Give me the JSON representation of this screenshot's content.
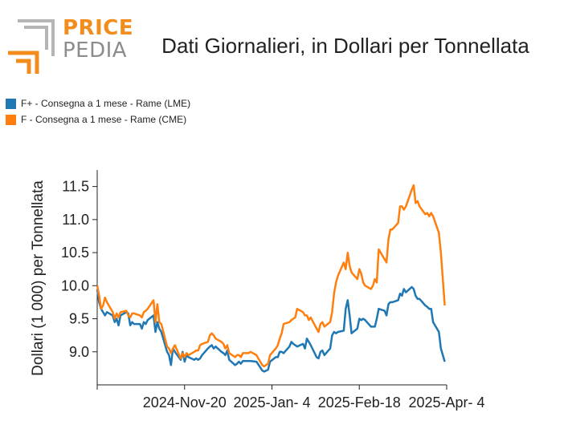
{
  "logo": {
    "word1": "PRICE",
    "word2": "PEDIA"
  },
  "chart_data": {
    "type": "line",
    "title": "Dati Giornalieri, in Dollari per Tonnellata",
    "ylabel": "Dollari (1 000) per Tonnellata",
    "xlabel": "",
    "ylim": [
      8.5,
      11.75
    ],
    "yticks": [
      9.0,
      9.5,
      10.0,
      10.5,
      11.0,
      11.5
    ],
    "xlim": [
      "2024-10-06",
      "2025-04-04"
    ],
    "xticks": [
      {
        "date": "2024-10-06",
        "label": ""
      },
      {
        "date": "2024-11-20",
        "label": "2024-Nov-20"
      },
      {
        "date": "2025-01-04",
        "label": "2025-Jan- 4"
      },
      {
        "date": "2025-02-18",
        "label": "2025-Feb-18"
      },
      {
        "date": "2025-04-04",
        "label": "2025-Apr- 4"
      }
    ],
    "grid": false,
    "legend_position": "top-left",
    "series": [
      {
        "name": "F+ - Consegna a 1 mese - Rame (LME)",
        "color": "#1f77b4",
        "points": [
          [
            "2024-10-06",
            9.95
          ],
          [
            "2024-10-07",
            9.75
          ],
          [
            "2024-10-08",
            9.65
          ],
          [
            "2024-10-09",
            9.6
          ],
          [
            "2024-10-10",
            9.55
          ],
          [
            "2024-10-11",
            9.6
          ],
          [
            "2024-10-14",
            9.55
          ],
          [
            "2024-10-15",
            9.45
          ],
          [
            "2024-10-16",
            9.5
          ],
          [
            "2024-10-17",
            9.4
          ],
          [
            "2024-10-18",
            9.55
          ],
          [
            "2024-10-21",
            9.6
          ],
          [
            "2024-10-22",
            9.58
          ],
          [
            "2024-10-23",
            9.4
          ],
          [
            "2024-10-24",
            9.45
          ],
          [
            "2024-10-25",
            9.42
          ],
          [
            "2024-10-28",
            9.42
          ],
          [
            "2024-10-29",
            9.35
          ],
          [
            "2024-10-30",
            9.45
          ],
          [
            "2024-10-31",
            9.42
          ],
          [
            "2024-11-01",
            9.48
          ],
          [
            "2024-11-04",
            9.55
          ],
          [
            "2024-11-05",
            9.3
          ],
          [
            "2024-11-06",
            9.45
          ],
          [
            "2024-11-07",
            9.35
          ],
          [
            "2024-11-08",
            9.3
          ],
          [
            "2024-11-11",
            9.0
          ],
          [
            "2024-11-12",
            8.95
          ],
          [
            "2024-11-13",
            8.8
          ],
          [
            "2024-11-14",
            9.05
          ],
          [
            "2024-11-15",
            9.0
          ],
          [
            "2024-11-18",
            8.88
          ],
          [
            "2024-11-19",
            9.0
          ],
          [
            "2024-11-20",
            8.85
          ],
          [
            "2024-11-21",
            8.95
          ],
          [
            "2024-11-22",
            8.92
          ],
          [
            "2024-11-25",
            8.88
          ],
          [
            "2024-11-26",
            8.9
          ],
          [
            "2024-11-27",
            8.88
          ],
          [
            "2024-11-28",
            8.9
          ],
          [
            "2024-11-29",
            8.95
          ],
          [
            "2024-12-02",
            9.05
          ],
          [
            "2024-12-03",
            9.08
          ],
          [
            "2024-12-04",
            9.1
          ],
          [
            "2024-12-05",
            9.05
          ],
          [
            "2024-12-06",
            9.08
          ],
          [
            "2024-12-09",
            9.0
          ],
          [
            "2024-12-10",
            8.98
          ],
          [
            "2024-12-11",
            8.95
          ],
          [
            "2024-12-12",
            9.02
          ],
          [
            "2024-12-13",
            8.88
          ],
          [
            "2024-12-16",
            8.8
          ],
          [
            "2024-12-17",
            8.82
          ],
          [
            "2024-12-18",
            8.85
          ],
          [
            "2024-12-19",
            8.82
          ],
          [
            "2024-12-20",
            8.86
          ],
          [
            "2024-12-23",
            8.86
          ],
          [
            "2024-12-24",
            8.86
          ],
          [
            "2024-12-27",
            8.85
          ],
          [
            "2024-12-30",
            8.72
          ],
          [
            "2024-12-31",
            8.7
          ],
          [
            "2025-01-02",
            8.73
          ],
          [
            "2025-01-03",
            8.85
          ],
          [
            "2025-01-06",
            8.92
          ],
          [
            "2025-01-07",
            8.92
          ],
          [
            "2025-01-08",
            9.0
          ],
          [
            "2025-01-09",
            9.0
          ],
          [
            "2025-01-10",
            8.98
          ],
          [
            "2025-01-13",
            9.08
          ],
          [
            "2025-01-14",
            9.15
          ],
          [
            "2025-01-15",
            9.12
          ],
          [
            "2025-01-16",
            9.1
          ],
          [
            "2025-01-17",
            9.08
          ],
          [
            "2025-01-20",
            9.12
          ],
          [
            "2025-01-21",
            9.05
          ],
          [
            "2025-01-22",
            9.2
          ],
          [
            "2025-01-23",
            9.15
          ],
          [
            "2025-01-24",
            9.1
          ],
          [
            "2025-01-27",
            8.92
          ],
          [
            "2025-01-28",
            8.9
          ],
          [
            "2025-01-29",
            9.0
          ],
          [
            "2025-01-30",
            9.02
          ],
          [
            "2025-01-31",
            8.95
          ],
          [
            "2025-02-03",
            9.05
          ],
          [
            "2025-02-04",
            9.25
          ],
          [
            "2025-02-05",
            9.3
          ],
          [
            "2025-02-06",
            9.28
          ],
          [
            "2025-02-07",
            9.3
          ],
          [
            "2025-02-10",
            9.32
          ],
          [
            "2025-02-11",
            9.65
          ],
          [
            "2025-02-12",
            9.78
          ],
          [
            "2025-02-13",
            9.55
          ],
          [
            "2025-02-14",
            9.28
          ],
          [
            "2025-02-17",
            9.35
          ],
          [
            "2025-02-18",
            9.5
          ],
          [
            "2025-02-19",
            9.48
          ],
          [
            "2025-02-20",
            9.5
          ],
          [
            "2025-02-21",
            9.48
          ],
          [
            "2025-02-24",
            9.38
          ],
          [
            "2025-02-25",
            9.38
          ],
          [
            "2025-02-26",
            9.38
          ],
          [
            "2025-02-27",
            9.5
          ],
          [
            "2025-02-28",
            9.65
          ],
          [
            "2025-03-03",
            9.62
          ],
          [
            "2025-03-04",
            9.55
          ],
          [
            "2025-03-05",
            9.72
          ],
          [
            "2025-03-06",
            9.75
          ],
          [
            "2025-03-07",
            9.75
          ],
          [
            "2025-03-10",
            9.78
          ],
          [
            "2025-03-11",
            9.88
          ],
          [
            "2025-03-12",
            9.85
          ],
          [
            "2025-03-13",
            9.95
          ],
          [
            "2025-03-14",
            9.9
          ],
          [
            "2025-03-17",
            9.98
          ],
          [
            "2025-03-18",
            9.95
          ],
          [
            "2025-03-19",
            9.85
          ],
          [
            "2025-03-20",
            9.8
          ],
          [
            "2025-03-21",
            9.8
          ],
          [
            "2025-03-24",
            9.7
          ],
          [
            "2025-03-25",
            9.68
          ],
          [
            "2025-03-26",
            9.65
          ],
          [
            "2025-03-27",
            9.65
          ],
          [
            "2025-03-28",
            9.45
          ],
          [
            "2025-03-31",
            9.3
          ],
          [
            "2025-04-01",
            9.05
          ],
          [
            "2025-04-02",
            8.95
          ],
          [
            "2025-04-03",
            8.85
          ]
        ]
      },
      {
        "name": "F - Consegna a 1 mese - Rame (CME)",
        "color": "#ff7f0e",
        "points": [
          [
            "2024-10-06",
            10.0
          ],
          [
            "2024-10-07",
            9.85
          ],
          [
            "2024-10-08",
            9.65
          ],
          [
            "2024-10-09",
            9.7
          ],
          [
            "2024-10-10",
            9.82
          ],
          [
            "2024-10-11",
            9.75
          ],
          [
            "2024-10-14",
            9.6
          ],
          [
            "2024-10-15",
            9.5
          ],
          [
            "2024-10-16",
            9.58
          ],
          [
            "2024-10-17",
            9.52
          ],
          [
            "2024-10-18",
            9.6
          ],
          [
            "2024-10-21",
            9.62
          ],
          [
            "2024-10-22",
            9.55
          ],
          [
            "2024-10-23",
            9.52
          ],
          [
            "2024-10-24",
            9.58
          ],
          [
            "2024-10-25",
            9.58
          ],
          [
            "2024-10-28",
            9.55
          ],
          [
            "2024-10-29",
            9.52
          ],
          [
            "2024-10-30",
            9.6
          ],
          [
            "2024-10-31",
            9.62
          ],
          [
            "2024-11-01",
            9.65
          ],
          [
            "2024-11-04",
            9.78
          ],
          [
            "2024-11-05",
            9.45
          ],
          [
            "2024-11-06",
            9.72
          ],
          [
            "2024-11-07",
            9.45
          ],
          [
            "2024-11-08",
            9.42
          ],
          [
            "2024-11-11",
            9.08
          ],
          [
            "2024-11-12",
            9.05
          ],
          [
            "2024-11-13",
            8.98
          ],
          [
            "2024-11-14",
            9.05
          ],
          [
            "2024-11-15",
            9.1
          ],
          [
            "2024-11-18",
            8.9
          ],
          [
            "2024-11-19",
            8.98
          ],
          [
            "2024-11-20",
            8.92
          ],
          [
            "2024-11-21",
            8.98
          ],
          [
            "2024-11-22",
            8.95
          ],
          [
            "2024-11-25",
            9.0
          ],
          [
            "2024-11-26",
            9.02
          ],
          [
            "2024-11-27",
            9.02
          ],
          [
            "2024-11-28",
            9.1
          ],
          [
            "2024-11-29",
            9.12
          ],
          [
            "2024-12-02",
            9.15
          ],
          [
            "2024-12-03",
            9.25
          ],
          [
            "2024-12-04",
            9.28
          ],
          [
            "2024-12-05",
            9.25
          ],
          [
            "2024-12-06",
            9.2
          ],
          [
            "2024-12-09",
            9.15
          ],
          [
            "2024-12-10",
            9.12
          ],
          [
            "2024-12-11",
            9.05
          ],
          [
            "2024-12-12",
            9.1
          ],
          [
            "2024-12-13",
            8.98
          ],
          [
            "2024-12-16",
            8.92
          ],
          [
            "2024-12-17",
            8.95
          ],
          [
            "2024-12-18",
            8.95
          ],
          [
            "2024-12-19",
            8.92
          ],
          [
            "2024-12-20",
            8.98
          ],
          [
            "2024-12-23",
            8.98
          ],
          [
            "2024-12-24",
            9.0
          ],
          [
            "2024-12-27",
            8.95
          ],
          [
            "2024-12-30",
            8.8
          ],
          [
            "2024-12-31",
            8.78
          ],
          [
            "2025-01-02",
            8.82
          ],
          [
            "2025-01-03",
            8.95
          ],
          [
            "2025-01-06",
            9.05
          ],
          [
            "2025-01-07",
            9.1
          ],
          [
            "2025-01-08",
            9.2
          ],
          [
            "2025-01-09",
            9.28
          ],
          [
            "2025-01-10",
            9.42
          ],
          [
            "2025-01-13",
            9.45
          ],
          [
            "2025-01-14",
            9.48
          ],
          [
            "2025-01-15",
            9.5
          ],
          [
            "2025-01-16",
            9.52
          ],
          [
            "2025-01-17",
            9.65
          ],
          [
            "2025-01-20",
            9.6
          ],
          [
            "2025-01-21",
            9.55
          ],
          [
            "2025-01-22",
            9.55
          ],
          [
            "2025-01-23",
            9.48
          ],
          [
            "2025-01-24",
            9.52
          ],
          [
            "2025-01-27",
            9.35
          ],
          [
            "2025-01-28",
            9.3
          ],
          [
            "2025-01-29",
            9.42
          ],
          [
            "2025-01-30",
            9.45
          ],
          [
            "2025-01-31",
            9.38
          ],
          [
            "2025-02-03",
            9.45
          ],
          [
            "2025-02-04",
            9.6
          ],
          [
            "2025-02-05",
            9.88
          ],
          [
            "2025-02-06",
            10.05
          ],
          [
            "2025-02-07",
            10.15
          ],
          [
            "2025-02-10",
            10.35
          ],
          [
            "2025-02-11",
            10.25
          ],
          [
            "2025-02-12",
            10.5
          ],
          [
            "2025-02-13",
            10.3
          ],
          [
            "2025-02-14",
            10.2
          ],
          [
            "2025-02-17",
            10.1
          ],
          [
            "2025-02-18",
            10.25
          ],
          [
            "2025-02-19",
            10.18
          ],
          [
            "2025-02-20",
            10.05
          ],
          [
            "2025-02-21",
            10.0
          ],
          [
            "2025-02-24",
            9.95
          ],
          [
            "2025-02-25",
            10.0
          ],
          [
            "2025-02-26",
            10.1
          ],
          [
            "2025-02-27",
            10.05
          ],
          [
            "2025-02-28",
            10.55
          ],
          [
            "2025-03-03",
            10.4
          ],
          [
            "2025-03-04",
            10.35
          ],
          [
            "2025-03-05",
            10.7
          ],
          [
            "2025-03-06",
            10.85
          ],
          [
            "2025-03-07",
            10.85
          ],
          [
            "2025-03-10",
            10.95
          ],
          [
            "2025-03-11",
            11.2
          ],
          [
            "2025-03-12",
            11.2
          ],
          [
            "2025-03-13",
            11.15
          ],
          [
            "2025-03-14",
            11.2
          ],
          [
            "2025-03-17",
            11.45
          ],
          [
            "2025-03-18",
            11.52
          ],
          [
            "2025-03-19",
            11.25
          ],
          [
            "2025-03-20",
            11.28
          ],
          [
            "2025-03-21",
            11.2
          ],
          [
            "2025-03-24",
            11.08
          ],
          [
            "2025-03-25",
            11.1
          ],
          [
            "2025-03-26",
            11.05
          ],
          [
            "2025-03-27",
            11.1
          ],
          [
            "2025-03-28",
            11.05
          ],
          [
            "2025-03-31",
            10.8
          ],
          [
            "2025-04-01",
            10.5
          ],
          [
            "2025-04-02",
            10.1
          ],
          [
            "2025-04-03",
            9.7
          ]
        ]
      }
    ]
  }
}
